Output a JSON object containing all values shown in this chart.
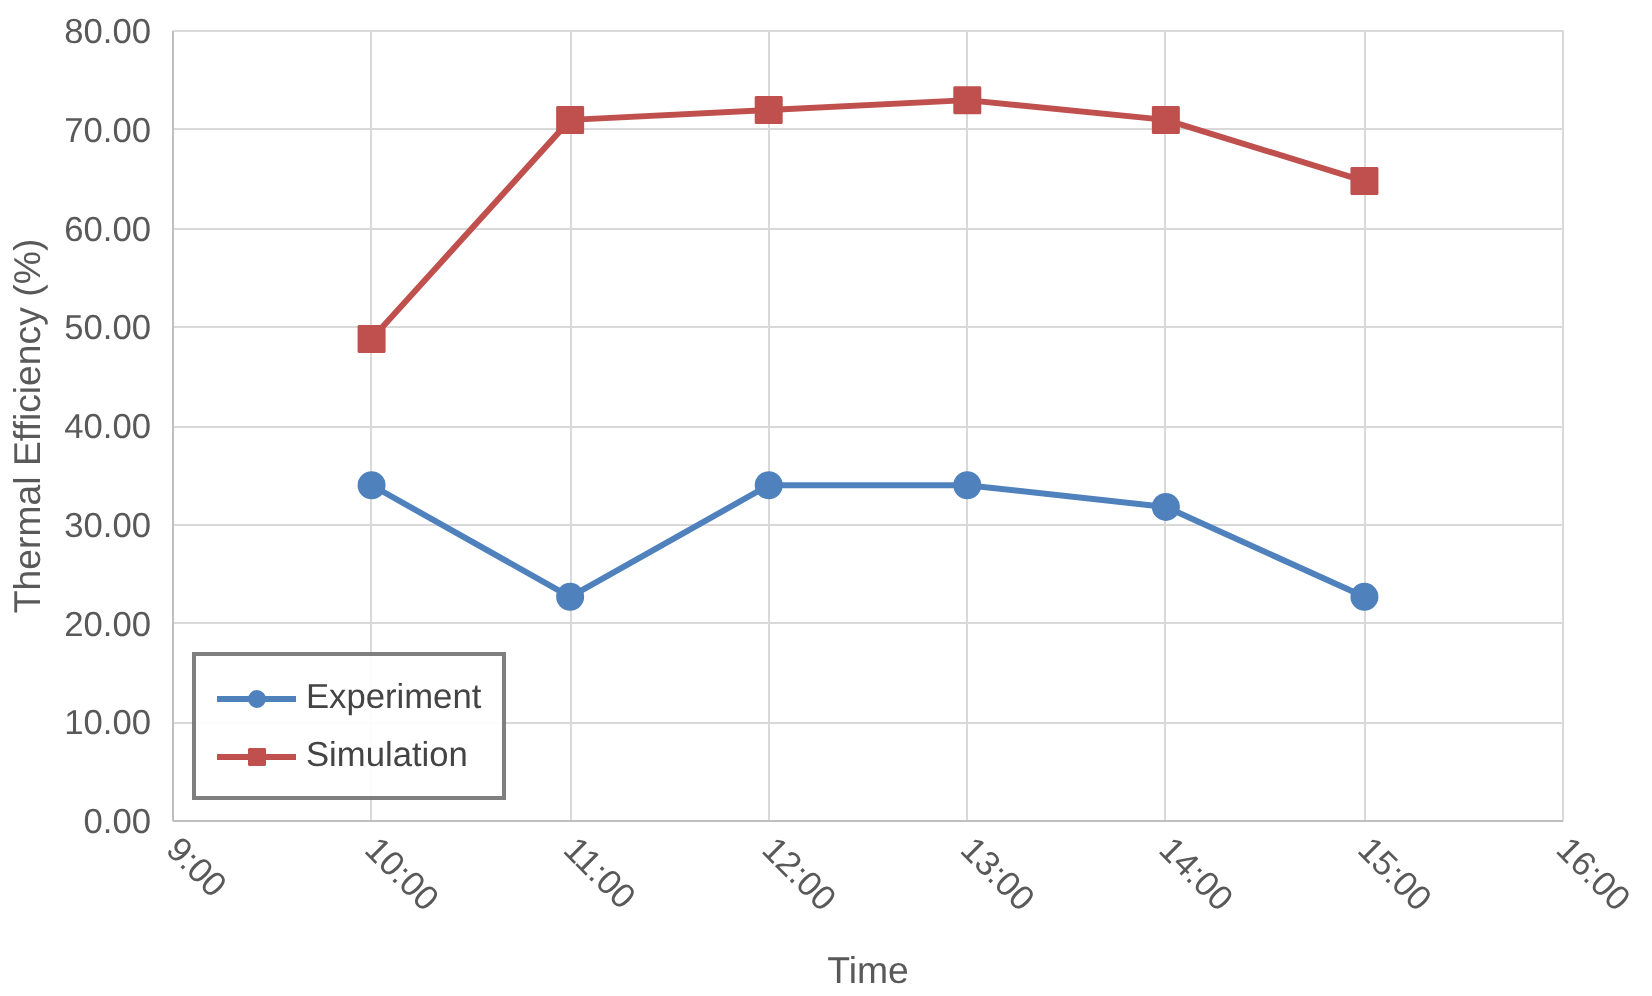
{
  "chart_data": {
    "type": "line",
    "xlabel": "Time",
    "ylabel": "Thermal Efficiency (%)",
    "x": [
      10,
      11,
      12,
      13,
      14,
      15
    ],
    "xlim": [
      9,
      16
    ],
    "xticks": [
      {
        "value": 9,
        "label": "9:00"
      },
      {
        "value": 10,
        "label": "10:00"
      },
      {
        "value": 11,
        "label": "11:00"
      },
      {
        "value": 12,
        "label": "12:00"
      },
      {
        "value": 13,
        "label": "13:00"
      },
      {
        "value": 14,
        "label": "14:00"
      },
      {
        "value": 15,
        "label": "15:00"
      },
      {
        "value": 16,
        "label": "16:00"
      }
    ],
    "ylim": [
      0,
      80
    ],
    "yticks": [
      {
        "value": 0,
        "label": "0.00"
      },
      {
        "value": 10,
        "label": "10.00"
      },
      {
        "value": 20,
        "label": "20.00"
      },
      {
        "value": 30,
        "label": "30.00"
      },
      {
        "value": 40,
        "label": "40.00"
      },
      {
        "value": 50,
        "label": "50.00"
      },
      {
        "value": 60,
        "label": "60.00"
      },
      {
        "value": 70,
        "label": "70.00"
      },
      {
        "value": 80,
        "label": "80.00"
      }
    ],
    "series": [
      {
        "name": "Experiment",
        "color": "#4f81bd",
        "marker": "circle",
        "values": [
          34.0,
          22.7,
          34.0,
          34.0,
          31.8,
          22.7
        ]
      },
      {
        "name": "Simulation",
        "color": "#c0504d",
        "marker": "square",
        "values": [
          48.8,
          71.0,
          72.0,
          73.0,
          71.0,
          64.8
        ]
      }
    ],
    "grid": true,
    "legend": "bottom left",
    "line_style": "solid"
  }
}
